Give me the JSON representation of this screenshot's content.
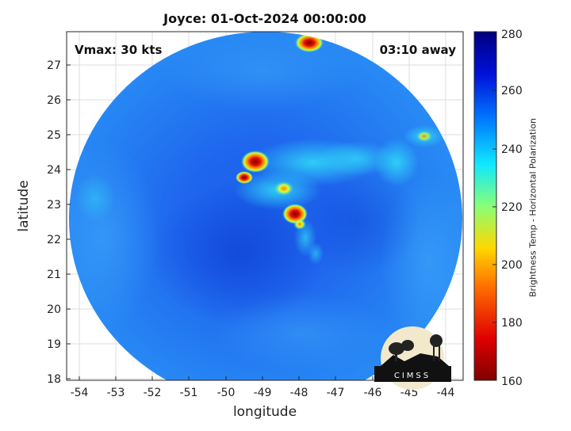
{
  "title": "Joyce: 01-Oct-2024 00:00:00",
  "annotations": {
    "vmax": "Vmax: 30 kts",
    "time_away": "03:10 away"
  },
  "xlabel": "longitude",
  "ylabel": "latitude",
  "x_ticks": [
    "-54",
    "-53",
    "-52",
    "-51",
    "-50",
    "-49",
    "-48",
    "-47",
    "-46",
    "-45",
    "-44"
  ],
  "y_ticks": [
    "27",
    "26",
    "25",
    "24",
    "23",
    "22",
    "21",
    "20",
    "19",
    "18"
  ],
  "colorbar": {
    "label": "Brightness Temp - Horizontal Polarization",
    "ticks": [
      "280",
      "260",
      "240",
      "220",
      "200",
      "180",
      "160"
    ]
  },
  "logo": {
    "text": "CIMSS"
  }
}
